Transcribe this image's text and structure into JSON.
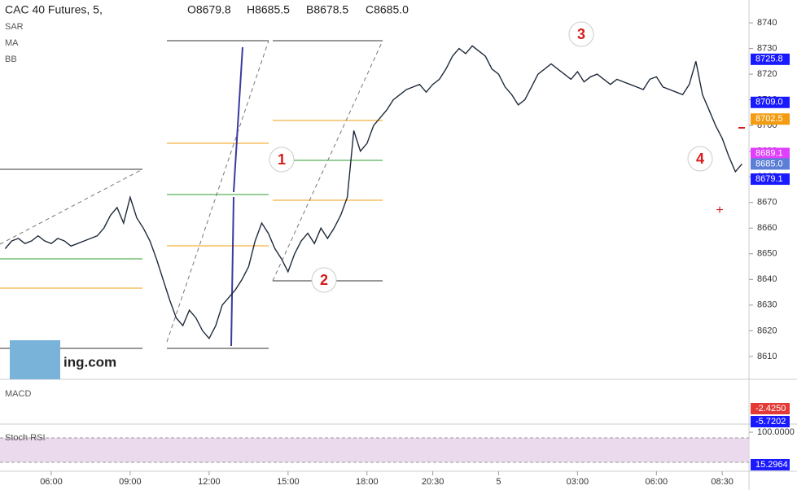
{
  "chart_data": {
    "type": "line",
    "title": "CAC 40 Futures, 5,",
    "ohlc": [
      "O8679.8",
      "H8685.5",
      "B8678.5",
      "C8685.0"
    ],
    "indicators": [
      "SAR",
      "MA",
      "BB"
    ],
    "logo": "ing.com",
    "annotations": [
      "1",
      "2",
      "3",
      "4"
    ],
    "categories": [
      null,
      null,
      null,
      null,
      null,
      null,
      null,
      "06:00",
      null,
      null,
      null,
      null,
      null,
      null,
      null,
      null,
      null,
      null,
      null,
      "09:00",
      null,
      null,
      null,
      null,
      null,
      null,
      null,
      null,
      null,
      null,
      null,
      "12:00",
      null,
      null,
      null,
      null,
      null,
      null,
      null,
      null,
      null,
      null,
      null,
      "15:00",
      null,
      null,
      null,
      null,
      null,
      null,
      null,
      null,
      null,
      null,
      null,
      "18:00",
      null,
      null,
      null,
      null,
      null,
      null,
      null,
      null,
      null,
      "20:30",
      null,
      null,
      null,
      null,
      null,
      null,
      null,
      null,
      null,
      "5",
      null,
      null,
      null,
      null,
      null,
      null,
      null,
      null,
      null,
      null,
      null,
      "03:00",
      null,
      null,
      null,
      null,
      null,
      null,
      null,
      null,
      null,
      null,
      null,
      "06:00",
      null,
      null,
      null,
      null,
      null,
      null,
      null,
      null,
      null,
      "08:30",
      null,
      null,
      null
    ],
    "series": [
      {
        "name": "CAC 40 Futures",
        "color": "#1e2a3a",
        "values": [
          8652,
          8655,
          8656,
          8654,
          8655,
          8657,
          8655,
          8654,
          8656,
          8655,
          8653,
          8654,
          8655,
          8656,
          8657,
          8660,
          8665,
          8668,
          8662,
          8672,
          8664,
          8660,
          8655,
          8648,
          8640,
          8632,
          8625,
          8622,
          8628,
          8625,
          8620,
          8617,
          8622,
          8630,
          8633,
          8636,
          8640,
          8645,
          8655,
          8662,
          8658,
          8652,
          8648,
          8643,
          8650,
          8655,
          8658,
          8654,
          8660,
          8656,
          8660,
          8665,
          8672,
          8698,
          8690,
          8693,
          8700,
          8703,
          8706,
          8710,
          8712,
          8714,
          8715,
          8716,
          8713,
          8716,
          8718,
          8722,
          8727,
          8730,
          8728,
          8731,
          8729,
          8727,
          8722,
          8720,
          8715,
          8712,
          8708,
          8710,
          8715,
          8720,
          8722,
          8724,
          8722,
          8720,
          8718,
          8721,
          8717,
          8719,
          8720,
          8718,
          8716,
          8718,
          8717,
          8716,
          8715,
          8714,
          8718,
          8719,
          8715,
          8714,
          8713,
          8712,
          8716,
          8725,
          8712,
          8706,
          8700,
          8695,
          8688,
          8682,
          8685
        ]
      }
    ],
    "ylim": [
      8601.4,
      8748.9
    ],
    "yticks": [
      8610,
      8620,
      8630,
      8640,
      8650,
      8660,
      8670,
      8680,
      8690,
      8700,
      8710,
      8720,
      8730,
      8740
    ],
    "price_tags": [
      {
        "value": 8725.8,
        "label": "8725.8",
        "color": "#1a1aff"
      },
      {
        "value": 8709.0,
        "label": "8709.0",
        "color": "#1a1aff"
      },
      {
        "value": 8702.5,
        "label": "8702.5",
        "color": "#f39c12"
      },
      {
        "value": 8689.1,
        "label": "8689.1",
        "color": "#e040fb"
      },
      {
        "value": 8685.0,
        "label": "8685.0",
        "color": "#5b7fd6"
      },
      {
        "value": 8679.1,
        "label": "8679.1",
        "color": "#1a1aff"
      }
    ],
    "macd": {
      "name": "MACD",
      "ylim": [
        -6.13,
        4.17
      ],
      "tags": [
        {
          "value": -2.425,
          "label": "-2.4250",
          "color": "#e53935"
        },
        {
          "value": -5.7202,
          "label": "-5.7202",
          "color": "#1a1aff"
        }
      ]
    },
    "stoch": {
      "name": "Stoch RSI",
      "ylim": [
        0.4,
        117
      ],
      "yticks": [
        {
          "value": 100,
          "label": "100.0000"
        }
      ],
      "tags": [
        {
          "value": 15.2964,
          "label": "15.2964",
          "color": "#1a1aff"
        }
      ]
    }
  }
}
